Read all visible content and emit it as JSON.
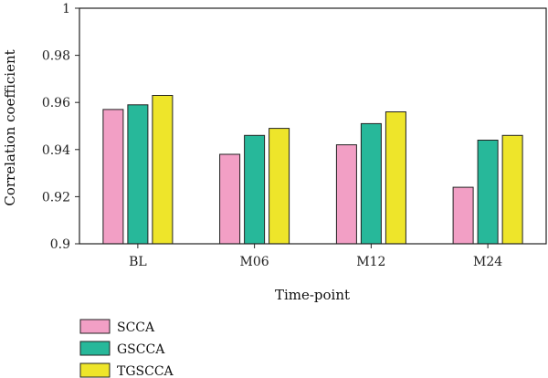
{
  "chart_data": {
    "type": "bar",
    "categories": [
      "BL",
      "M06",
      "M12",
      "M24"
    ],
    "series": [
      {
        "name": "SCCA",
        "color": "#f29fc5",
        "values": [
          0.957,
          0.938,
          0.942,
          0.924
        ]
      },
      {
        "name": "GSCCA",
        "color": "#27b89a",
        "values": [
          0.959,
          0.946,
          0.951,
          0.944
        ]
      },
      {
        "name": "TGSCCA",
        "color": "#eee52a",
        "values": [
          0.963,
          0.949,
          0.956,
          0.946
        ]
      }
    ],
    "xlabel": "Time-point",
    "ylabel": "Correlation coefficient",
    "ylim": [
      0.9,
      1
    ],
    "yticks": [
      "0.9",
      "0.92",
      "0.94",
      "0.96",
      "0.98",
      "1"
    ],
    "grid": false,
    "legend_position": "bottom-left"
  }
}
